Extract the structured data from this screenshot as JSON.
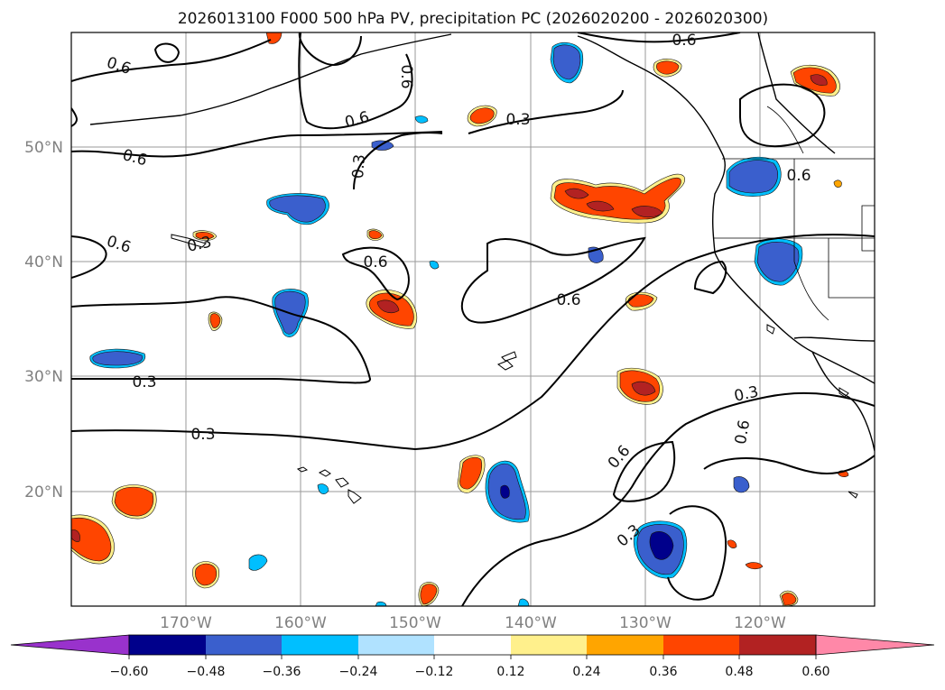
{
  "title": "2026013100 F000 500 hPa PV, precipitation PC (2026020200 - 2026020300)",
  "map": {
    "lon_range": [
      -180,
      -110
    ],
    "lat_range": [
      10,
      60
    ],
    "lat_labels": [
      "50°N",
      "40°N",
      "30°N",
      "20°N"
    ],
    "lon_labels": [
      "170°W",
      "160°W",
      "150°W",
      "140°W",
      "130°W",
      "120°W"
    ],
    "contour_labels": [
      "0.6",
      "0.6",
      "0.6",
      "0.6",
      "0.6",
      "0.3",
      "0.3",
      "0.6",
      "0.6",
      "0.3",
      "0.3",
      "0.3",
      "0.6",
      "0.6",
      "0.3",
      "0.6",
      "0.6",
      "0.3"
    ]
  },
  "colorbar": {
    "colors": [
      "#9932cc",
      "#00008b",
      "#3a5fcd",
      "#00bfff",
      "#b0e2ff",
      "#ffffff",
      "#fff08c",
      "#ffa500",
      "#ff4500",
      "#b22222",
      "#ff88a8"
    ],
    "ticks": [
      "−0.60",
      "−0.48",
      "−0.36",
      "−0.24",
      "−0.12",
      "0.12",
      "0.24",
      "0.36",
      "0.48",
      "0.60"
    ]
  }
}
